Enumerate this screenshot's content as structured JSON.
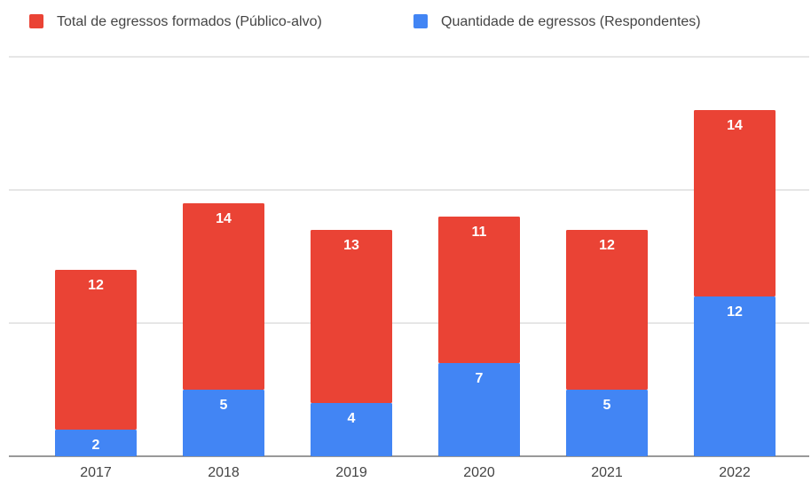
{
  "chart_data": {
    "type": "stacked_bar",
    "categories": [
      "2017",
      "2018",
      "2019",
      "2020",
      "2021",
      "2022"
    ],
    "series": [
      {
        "name": "Total de egressos formados (Público-alvo)",
        "color": "#ea4335",
        "values": [
          12,
          14,
          13,
          11,
          12,
          14
        ]
      },
      {
        "name": "Quantidade de egressos (Respondentes)",
        "color": "#4285f4",
        "values": [
          2,
          5,
          4,
          7,
          5,
          12
        ]
      }
    ],
    "ylim": [
      0,
      30
    ],
    "yticks": [
      0,
      10,
      20,
      30
    ],
    "grid": true,
    "legend": "top"
  }
}
